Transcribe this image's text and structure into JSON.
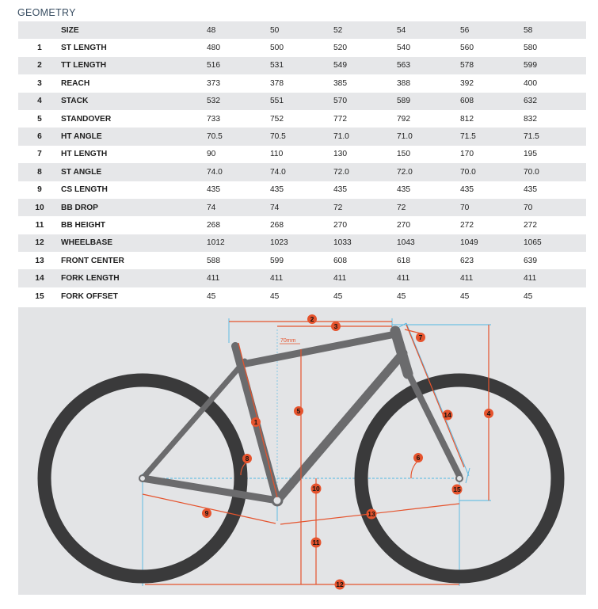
{
  "title": "GEOMETRY",
  "header": {
    "label": "SIZE",
    "sizes": [
      "48",
      "50",
      "52",
      "54",
      "56",
      "58"
    ]
  },
  "rows": [
    {
      "num": "1",
      "label": "ST LENGTH",
      "values": [
        "480",
        "500",
        "520",
        "540",
        "560",
        "580"
      ]
    },
    {
      "num": "2",
      "label": "TT LENGTH",
      "values": [
        "516",
        "531",
        "549",
        "563",
        "578",
        "599"
      ]
    },
    {
      "num": "3",
      "label": "REACH",
      "values": [
        "373",
        "378",
        "385",
        "388",
        "392",
        "400"
      ]
    },
    {
      "num": "4",
      "label": "STACK",
      "values": [
        "532",
        "551",
        "570",
        "589",
        "608",
        "632"
      ]
    },
    {
      "num": "5",
      "label": "STANDOVER",
      "values": [
        "733",
        "752",
        "772",
        "792",
        "812",
        "832"
      ]
    },
    {
      "num": "6",
      "label": "HT ANGLE",
      "values": [
        "70.5",
        "70.5",
        "71.0",
        "71.0",
        "71.5",
        "71.5"
      ]
    },
    {
      "num": "7",
      "label": "HT LENGTH",
      "values": [
        "90",
        "110",
        "130",
        "150",
        "170",
        "195"
      ]
    },
    {
      "num": "8",
      "label": "ST ANGLE",
      "values": [
        "74.0",
        "74.0",
        "72.0",
        "72.0",
        "70.0",
        "70.0"
      ]
    },
    {
      "num": "9",
      "label": "CS LENGTH",
      "values": [
        "435",
        "435",
        "435",
        "435",
        "435",
        "435"
      ]
    },
    {
      "num": "10",
      "label": "BB DROP",
      "values": [
        "74",
        "74",
        "72",
        "72",
        "70",
        "70"
      ]
    },
    {
      "num": "11",
      "label": "BB HEIGHT",
      "values": [
        "268",
        "268",
        "270",
        "270",
        "272",
        "272"
      ]
    },
    {
      "num": "12",
      "label": "WHEELBASE",
      "values": [
        "1012",
        "1023",
        "1033",
        "1043",
        "1049",
        "1065"
      ]
    },
    {
      "num": "13",
      "label": "FRONT CENTER",
      "values": [
        "588",
        "599",
        "608",
        "618",
        "623",
        "639"
      ]
    },
    {
      "num": "14",
      "label": "FORK LENGTH",
      "values": [
        "411",
        "411",
        "411",
        "411",
        "411",
        "411"
      ]
    },
    {
      "num": "15",
      "label": "FORK OFFSET",
      "values": [
        "45",
        "45",
        "45",
        "45",
        "45",
        "45"
      ]
    }
  ],
  "diagram": {
    "offset_label": "70mm",
    "markers": [
      "1",
      "2",
      "3",
      "4",
      "5",
      "6",
      "7",
      "8",
      "9",
      "10",
      "11",
      "12",
      "13",
      "14",
      "15"
    ],
    "colors": {
      "frame": "#6b6b6d",
      "tire": "#3a3a3b",
      "accent": "#e5532d",
      "guide": "#52b7e3",
      "background": "#e3e4e6"
    }
  }
}
